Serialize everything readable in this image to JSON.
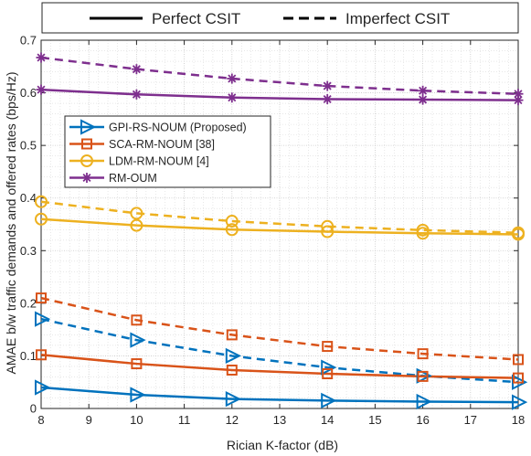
{
  "chart_data": {
    "type": "line",
    "title": "",
    "xlabel": "Rician K-factor (dB)",
    "ylabel": "AMAE b/w traffic demands and offered rates (bps/Hz)",
    "xlim": [
      8,
      18
    ],
    "ylim": [
      0,
      0.7
    ],
    "xticks": [
      "8",
      "9",
      "10",
      "11",
      "12",
      "13",
      "14",
      "15",
      "16",
      "17",
      "18"
    ],
    "yticks": [
      "0",
      "0.1",
      "0.2",
      "0.3",
      "0.4",
      "0.5",
      "0.6",
      "0.7"
    ],
    "grid": true,
    "minor_grid": true,
    "x": [
      8,
      10,
      12,
      14,
      16,
      18
    ],
    "style_legend": {
      "placement": "top",
      "solid_label": "Perfect CSIT",
      "dashed_label": "Imperfect CSIT"
    },
    "method_legend": {
      "placement": "center-left",
      "entries": [
        {
          "label": "GPI-RS-NOUM (Proposed)",
          "color": "#0072BD",
          "marker": "triangle-right"
        },
        {
          "label": "SCA-RM-NOUM [38]",
          "color": "#D95319",
          "marker": "square"
        },
        {
          "label": "LDM-RM-NOUM [4]",
          "color": "#EDB120",
          "marker": "circle"
        },
        {
          "label": "RM-OUM",
          "color": "#7E2F8E",
          "marker": "asterisk"
        }
      ]
    },
    "series": [
      {
        "method": "GPI-RS-NOUM (Proposed)",
        "csit": "Perfect CSIT",
        "dash": "solid",
        "color": "#0072BD",
        "marker": "triangle-right",
        "values": [
          0.04,
          0.026,
          0.018,
          0.015,
          0.013,
          0.012
        ]
      },
      {
        "method": "GPI-RS-NOUM (Proposed)",
        "csit": "Imperfect CSIT",
        "dash": "dashed",
        "color": "#0072BD",
        "marker": "triangle-right",
        "values": [
          0.17,
          0.13,
          0.1,
          0.078,
          0.062,
          0.05
        ]
      },
      {
        "method": "SCA-RM-NOUM [38]",
        "csit": "Perfect CSIT",
        "dash": "solid",
        "color": "#D95319",
        "marker": "square",
        "values": [
          0.102,
          0.085,
          0.073,
          0.066,
          0.061,
          0.058
        ]
      },
      {
        "method": "SCA-RM-NOUM [38]",
        "csit": "Imperfect CSIT",
        "dash": "dashed",
        "color": "#D95319",
        "marker": "square",
        "values": [
          0.21,
          0.168,
          0.14,
          0.118,
          0.104,
          0.093
        ]
      },
      {
        "method": "LDM-RM-NOUM [4]",
        "csit": "Perfect CSIT",
        "dash": "solid",
        "color": "#EDB120",
        "marker": "circle",
        "values": [
          0.36,
          0.348,
          0.34,
          0.336,
          0.333,
          0.331
        ]
      },
      {
        "method": "LDM-RM-NOUM [4]",
        "csit": "Imperfect CSIT",
        "dash": "dashed",
        "color": "#EDB120",
        "marker": "circle",
        "values": [
          0.393,
          0.371,
          0.356,
          0.346,
          0.339,
          0.334
        ]
      },
      {
        "method": "RM-OUM",
        "csit": "Perfect CSIT",
        "dash": "solid",
        "color": "#7E2F8E",
        "marker": "asterisk",
        "values": [
          0.606,
          0.597,
          0.591,
          0.588,
          0.587,
          0.586
        ]
      },
      {
        "method": "RM-OUM",
        "csit": "Imperfect CSIT",
        "dash": "dashed",
        "color": "#7E2F8E",
        "marker": "asterisk",
        "values": [
          0.667,
          0.645,
          0.627,
          0.613,
          0.604,
          0.598
        ]
      }
    ]
  }
}
